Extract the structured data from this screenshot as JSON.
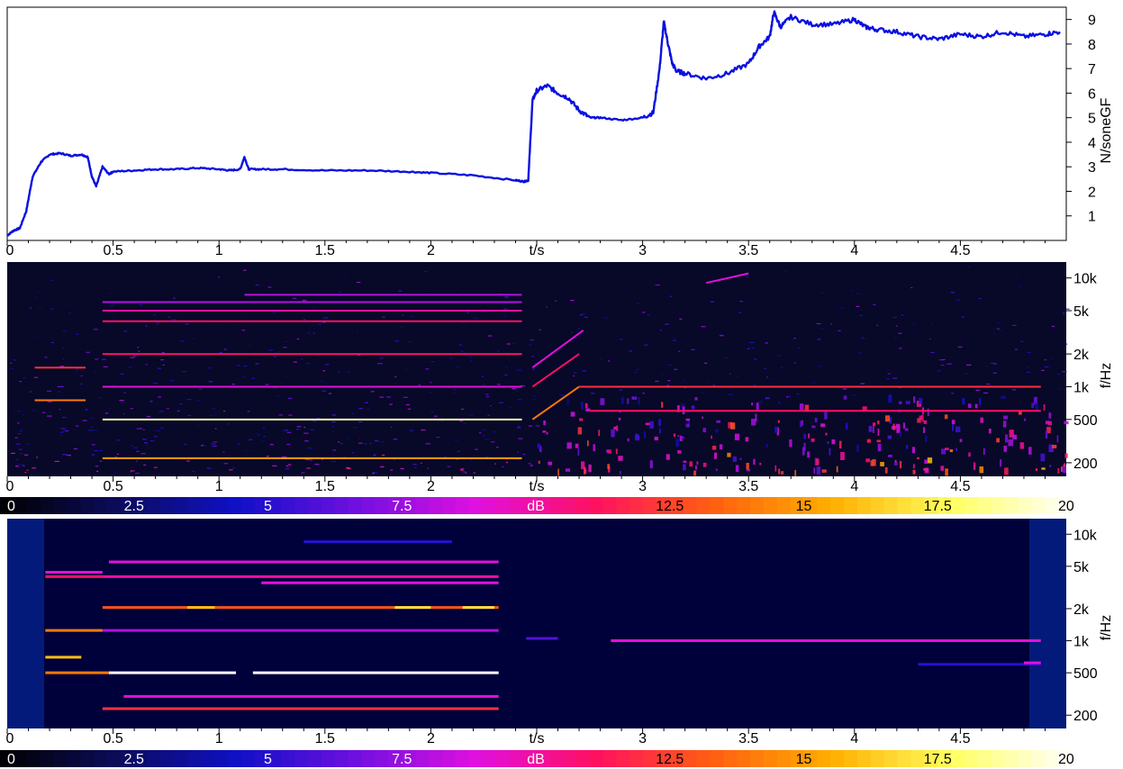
{
  "chart_data": [
    {
      "type": "line",
      "title": "",
      "xlabel": "t/s",
      "ylabel": "N/soneGF",
      "xlim": [
        0,
        5
      ],
      "ylim": [
        0,
        9.5
      ],
      "x_ticks": [
        "0",
        "0.5",
        "1",
        "1.5",
        "2",
        "t/s",
        "3",
        "3.5",
        "4",
        "4.5"
      ],
      "x_tick_values": [
        0,
        0.5,
        1,
        1.5,
        2,
        2.5,
        3,
        3.5,
        4,
        4.5
      ],
      "y_ticks": [
        "1",
        "2",
        "3",
        "4",
        "5",
        "6",
        "7",
        "8",
        "9"
      ],
      "y_tick_values": [
        1,
        2,
        3,
        4,
        5,
        6,
        7,
        8,
        9
      ],
      "color": "#0a10e0",
      "series": [
        {
          "x": [
            0,
            0.03,
            0.06,
            0.09,
            0.12,
            0.16,
            0.2,
            0.25,
            0.3,
            0.35,
            0.38,
            0.4,
            0.42,
            0.45,
            0.48,
            0.5,
            0.6,
            0.7,
            0.8,
            0.9,
            1.0,
            1.05,
            1.1,
            1.12,
            1.14,
            1.2,
            1.3,
            1.5,
            1.7,
            1.9,
            2.0,
            2.2,
            2.4,
            2.44,
            2.46,
            2.48,
            2.5,
            2.55,
            2.6,
            2.65,
            2.7,
            2.75,
            2.8,
            2.9,
            3.0,
            3.05,
            3.08,
            3.1,
            3.12,
            3.14,
            3.16,
            3.2,
            3.3,
            3.4,
            3.5,
            3.55,
            3.6,
            3.62,
            3.65,
            3.7,
            3.8,
            3.9,
            4.0,
            4.05,
            4.1,
            4.2,
            4.3,
            4.4,
            4.5,
            4.6,
            4.7,
            4.8,
            4.9,
            4.97
          ],
          "y": [
            0.2,
            0.4,
            0.5,
            1.2,
            2.6,
            3.2,
            3.5,
            3.55,
            3.45,
            3.5,
            3.4,
            2.6,
            2.2,
            3.0,
            2.7,
            2.8,
            2.85,
            2.9,
            2.9,
            2.95,
            2.9,
            2.85,
            2.9,
            3.4,
            2.9,
            2.9,
            2.9,
            2.85,
            2.85,
            2.8,
            2.75,
            2.65,
            2.45,
            2.4,
            2.45,
            5.7,
            6.1,
            6.3,
            6.0,
            5.8,
            5.3,
            5.0,
            5.0,
            4.9,
            5.0,
            5.2,
            7.0,
            8.9,
            8.0,
            7.2,
            6.9,
            6.8,
            6.6,
            6.8,
            7.2,
            7.9,
            8.3,
            9.3,
            8.7,
            9.1,
            8.8,
            8.8,
            9.0,
            8.7,
            8.6,
            8.5,
            8.3,
            8.2,
            8.4,
            8.3,
            8.5,
            8.3,
            8.4,
            8.5
          ]
        }
      ]
    },
    {
      "type": "heatmap",
      "title": "",
      "xlabel": "t/s",
      "ylabel": "f/Hz",
      "xlim": [
        0,
        5
      ],
      "x_ticks": [
        "0",
        "0.5",
        "1",
        "1.5",
        "2",
        "t/s",
        "3",
        "3.5",
        "4",
        "4.5"
      ],
      "y_ticks": [
        "200",
        "500",
        "1k",
        "2k",
        "5k",
        "10k"
      ],
      "y_tick_values": [
        200,
        500,
        1000,
        2000,
        5000,
        10000
      ],
      "ylim": [
        150,
        14000
      ],
      "y_scale": "log",
      "lines": [
        {
          "x": [
            0.13,
            0.37
          ],
          "freq": [
            750,
            750
          ],
          "level": 14
        },
        {
          "x": [
            0.13,
            0.37
          ],
          "freq": [
            1500,
            1500
          ],
          "level": 12
        },
        {
          "x": [
            0.45,
            2.43
          ],
          "freq": [
            500,
            500
          ],
          "level": 19
        },
        {
          "x": [
            0.45,
            2.43
          ],
          "freq": [
            1000,
            1000
          ],
          "level": 9
        },
        {
          "x": [
            0.45,
            2.43
          ],
          "freq": [
            2000,
            2000
          ],
          "level": 11
        },
        {
          "x": [
            0.45,
            2.43
          ],
          "freq": [
            4000,
            4000
          ],
          "level": 11
        },
        {
          "x": [
            0.45,
            2.43
          ],
          "freq": [
            5000,
            5000
          ],
          "level": 10
        },
        {
          "x": [
            0.45,
            2.43
          ],
          "freq": [
            6000,
            6000
          ],
          "level": 8
        },
        {
          "x": [
            0.45,
            2.43
          ],
          "freq": [
            220,
            220
          ],
          "level": 15
        },
        {
          "x": [
            2.48,
            2.7
          ],
          "freq": [
            500,
            1000
          ],
          "level": 14
        },
        {
          "x": [
            2.48,
            2.7
          ],
          "freq": [
            1000,
            2000
          ],
          "level": 11
        },
        {
          "x": [
            2.48,
            2.72
          ],
          "freq": [
            1500,
            3300
          ],
          "level": 9
        },
        {
          "x": [
            2.7,
            4.88
          ],
          "freq": [
            1000,
            1000
          ],
          "level": 12
        },
        {
          "x": [
            2.75,
            4.88
          ],
          "freq": [
            600,
            600
          ],
          "level": 11
        },
        {
          "x": [
            3.3,
            3.5
          ],
          "freq": [
            9000,
            11000
          ],
          "level": 9
        },
        {
          "x": [
            1.12,
            2.43
          ],
          "freq": [
            7000,
            7000
          ],
          "level": 8
        }
      ]
    },
    {
      "type": "heatmap",
      "title": "",
      "xlabel": "t/s",
      "ylabel": "f/Hz",
      "xlim": [
        0,
        5
      ],
      "x_ticks": [
        "0",
        "0.5",
        "1",
        "1.5",
        "2",
        "t/s",
        "3",
        "3.5",
        "4",
        "4.5"
      ],
      "y_ticks": [
        "200",
        "500",
        "1k",
        "2k",
        "5k",
        "10k"
      ],
      "y_tick_values": [
        200,
        500,
        1000,
        2000,
        5000,
        10000
      ],
      "ylim": [
        150,
        14000
      ],
      "y_scale": "log",
      "lines": [
        {
          "x": [
            0.18,
            0.48
          ],
          "freq": [
            500,
            500
          ],
          "level": 14
        },
        {
          "x": [
            0.48,
            1.08
          ],
          "freq": [
            500,
            500
          ],
          "level": 20
        },
        {
          "x": [
            1.16,
            2.32
          ],
          "freq": [
            500,
            500
          ],
          "level": 20
        },
        {
          "x": [
            0.18,
            0.35
          ],
          "freq": [
            700,
            700
          ],
          "level": 16
        },
        {
          "x": [
            0.45,
            2.32
          ],
          "freq": [
            2050,
            2050
          ],
          "level": 13
        },
        {
          "x": [
            0.85,
            0.98
          ],
          "freq": [
            2050,
            2050
          ],
          "level": 16
        },
        {
          "x": [
            1.83,
            2.0
          ],
          "freq": [
            2050,
            2050
          ],
          "level": 17
        },
        {
          "x": [
            2.15,
            2.3
          ],
          "freq": [
            2050,
            2050
          ],
          "level": 17
        },
        {
          "x": [
            0.18,
            0.45
          ],
          "freq": [
            1250,
            1250
          ],
          "level": 14
        },
        {
          "x": [
            0.45,
            2.32
          ],
          "freq": [
            1250,
            1250
          ],
          "level": 8
        },
        {
          "x": [
            0.18,
            0.45
          ],
          "freq": [
            4000,
            4000
          ],
          "level": 11
        },
        {
          "x": [
            0.18,
            0.45
          ],
          "freq": [
            4400,
            4400
          ],
          "level": 9
        },
        {
          "x": [
            0.45,
            2.32
          ],
          "freq": [
            4000,
            4000
          ],
          "level": 10
        },
        {
          "x": [
            1.2,
            2.32
          ],
          "freq": [
            3500,
            3500
          ],
          "level": 9
        },
        {
          "x": [
            0.48,
            2.32
          ],
          "freq": [
            5500,
            5500
          ],
          "level": 9
        },
        {
          "x": [
            0.45,
            2.32
          ],
          "freq": [
            230,
            230
          ],
          "level": 12
        },
        {
          "x": [
            0.55,
            2.32
          ],
          "freq": [
            300,
            300
          ],
          "level": 9
        },
        {
          "x": [
            1.4,
            2.1
          ],
          "freq": [
            8500,
            8500
          ],
          "level": 5
        },
        {
          "x": [
            2.85,
            4.88
          ],
          "freq": [
            1000,
            1000
          ],
          "level": 9
        },
        {
          "x": [
            2.45,
            2.6
          ],
          "freq": [
            1050,
            1050
          ],
          "level": 6
        },
        {
          "x": [
            4.3,
            4.88
          ],
          "freq": [
            600,
            600
          ],
          "level": 5
        },
        {
          "x": [
            4.8,
            4.88
          ],
          "freq": [
            620,
            620
          ],
          "level": 9
        }
      ]
    },
    {
      "type": "colorbar",
      "unit_label": "dB",
      "range": [
        0,
        20
      ],
      "tick_labels": [
        "0",
        "2.5",
        "5",
        "7.5",
        "dB",
        "12.5",
        "15",
        "17.5",
        "20"
      ],
      "tick_values": [
        0,
        2.5,
        5,
        7.5,
        10,
        12.5,
        15,
        17.5,
        20
      ],
      "stops": [
        "#000000",
        "#0c0c5c",
        "#1010c8",
        "#7010e0",
        "#e010e0",
        "#ff1060",
        "#ff6010",
        "#ffb000",
        "#ffff60",
        "#ffffff"
      ]
    }
  ]
}
